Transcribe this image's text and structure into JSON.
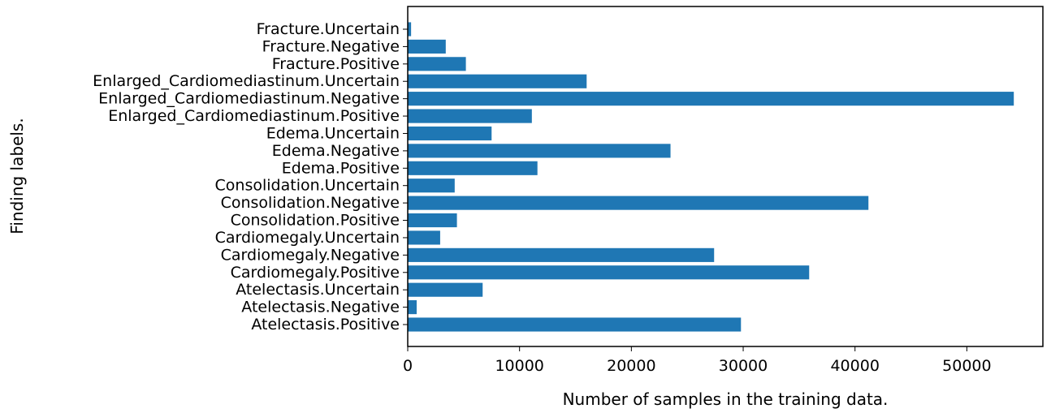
{
  "chart_data": {
    "type": "bar",
    "orientation": "horizontal",
    "xlabel": "Number of samples in the training data.",
    "ylabel": "Finding labels.",
    "xlim": [
      0,
      56800
    ],
    "xticks": [
      0,
      10000,
      20000,
      30000,
      40000,
      50000
    ],
    "grid": false,
    "bar_color": "#1f77b4",
    "categories": [
      "Atelectasis.Positive",
      "Atelectasis.Negative",
      "Atelectasis.Uncertain",
      "Cardiomegaly.Positive",
      "Cardiomegaly.Negative",
      "Cardiomegaly.Uncertain",
      "Consolidation.Positive",
      "Consolidation.Negative",
      "Consolidation.Uncertain",
      "Edema.Positive",
      "Edema.Negative",
      "Edema.Uncertain",
      "Enlarged_Cardiomediastinum.Positive",
      "Enlarged_Cardiomediastinum.Negative",
      "Enlarged_Cardiomediastinum.Uncertain",
      "Fracture.Positive",
      "Fracture.Negative",
      "Fracture.Uncertain"
    ],
    "values": [
      29800,
      800,
      6700,
      35900,
      27400,
      2900,
      4400,
      41200,
      4200,
      11600,
      23500,
      7500,
      11100,
      54200,
      16000,
      5200,
      3400,
      300
    ]
  }
}
